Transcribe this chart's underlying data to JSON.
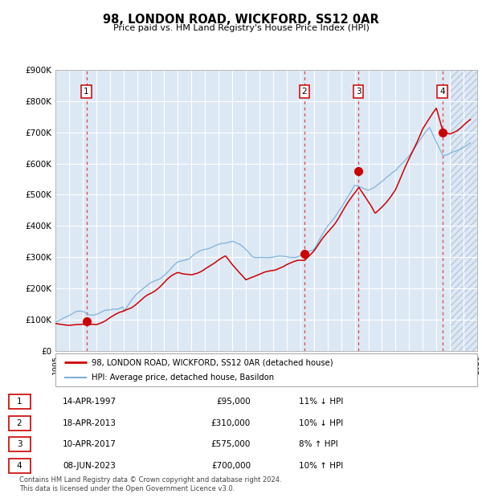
{
  "title": "98, LONDON ROAD, WICKFORD, SS12 0AR",
  "subtitle": "Price paid vs. HM Land Registry's House Price Index (HPI)",
  "bg_color": "#dde8f5",
  "hatch_color": "#b8c8dc",
  "future_start_year": 2024.0,
  "xlim": [
    1995,
    2026
  ],
  "ylim": [
    0,
    900000
  ],
  "yticks": [
    0,
    100000,
    200000,
    300000,
    400000,
    500000,
    600000,
    700000,
    800000,
    900000
  ],
  "ytick_labels": [
    "£0",
    "£100K",
    "£200K",
    "£300K",
    "£400K",
    "£500K",
    "£600K",
    "£700K",
    "£800K",
    "£900K"
  ],
  "grid_color": "#ffffff",
  "sale_color": "#cc0000",
  "hpi_color": "#7ab0d8",
  "vline_color": "#dd4444",
  "marker_color": "#cc0000",
  "sales": [
    {
      "label": "1",
      "year": 1997.28,
      "price": 95000
    },
    {
      "label": "2",
      "year": 2013.29,
      "price": 310000
    },
    {
      "label": "3",
      "year": 2017.27,
      "price": 575000
    },
    {
      "label": "4",
      "year": 2023.44,
      "price": 700000
    }
  ],
  "legend_label_red": "98, LONDON ROAD, WICKFORD, SS12 0AR (detached house)",
  "legend_label_blue": "HPI: Average price, detached house, Basildon",
  "footer1": "Contains HM Land Registry data © Crown copyright and database right 2024.",
  "footer2": "This data is licensed under the Open Government Licence v3.0.",
  "table_rows": [
    [
      "1",
      "14-APR-1997",
      "£95,000",
      "11% ↓ HPI"
    ],
    [
      "2",
      "18-APR-2013",
      "£310,000",
      "10% ↓ HPI"
    ],
    [
      "3",
      "10-APR-2017",
      "£575,000",
      "8% ↑ HPI"
    ],
    [
      "4",
      "08-JUN-2023",
      "£700,000",
      "10% ↑ HPI"
    ]
  ]
}
